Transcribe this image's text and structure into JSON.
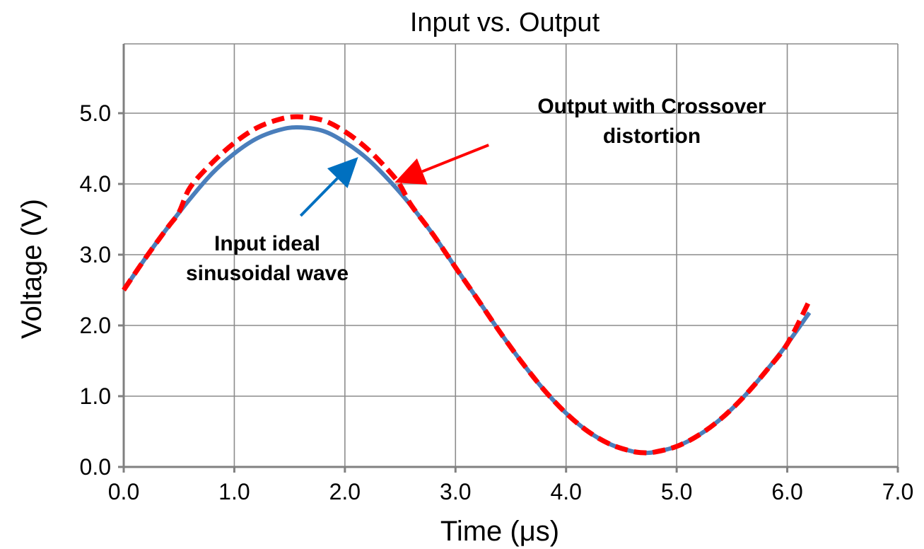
{
  "chart_data": {
    "type": "line",
    "title": "Input vs. Output",
    "xlabel": "Time (μs)",
    "ylabel": "Voltage (V)",
    "xlim": [
      0,
      7
    ],
    "ylim": [
      0,
      5
    ],
    "x_ticks": [
      "0.0",
      "1.0",
      "2.0",
      "3.0",
      "4.0",
      "5.0",
      "6.0",
      "7.0"
    ],
    "y_ticks": [
      "0.0",
      "1.0",
      "2.0",
      "3.0",
      "4.0",
      "5.0"
    ],
    "grid": true,
    "legend": "none",
    "series": [
      {
        "name": "Input ideal sinusoidal wave",
        "color": "#4a7ebb",
        "style": "solid",
        "x": [
          0.0,
          0.2,
          0.4,
          0.6,
          0.8,
          1.0,
          1.2,
          1.4,
          1.571,
          1.8,
          2.0,
          2.2,
          2.4,
          2.6,
          2.8,
          3.0,
          3.2,
          3.4,
          3.6,
          3.8,
          4.0,
          4.2,
          4.4,
          4.6,
          4.712,
          4.8,
          5.0,
          5.2,
          5.4,
          5.6,
          5.8,
          6.0,
          6.2
        ],
        "values": [
          2.5,
          2.96,
          3.39,
          3.79,
          4.15,
          4.43,
          4.64,
          4.76,
          4.8,
          4.75,
          4.59,
          4.36,
          4.05,
          3.69,
          3.28,
          2.82,
          2.37,
          1.91,
          1.48,
          1.09,
          0.76,
          0.5,
          0.32,
          0.22,
          0.2,
          0.21,
          0.29,
          0.45,
          0.68,
          0.98,
          1.34,
          1.74,
          2.18
        ]
      },
      {
        "name": "Output with Crossover distortion",
        "color": "#ff0000",
        "style": "dashed",
        "x": [
          0.0,
          0.2,
          0.4,
          0.5,
          0.6,
          0.8,
          1.0,
          1.2,
          1.4,
          1.571,
          1.8,
          2.0,
          2.2,
          2.4,
          2.5,
          2.6,
          2.8,
          3.0,
          3.2,
          3.4,
          3.6,
          3.8,
          4.0,
          4.2,
          4.4,
          4.6,
          4.712,
          4.8,
          5.0,
          5.2,
          5.4,
          5.6,
          5.8,
          6.0,
          6.2
        ],
        "values": [
          2.5,
          2.96,
          3.39,
          3.6,
          3.95,
          4.3,
          4.58,
          4.79,
          4.91,
          4.95,
          4.9,
          4.74,
          4.5,
          4.18,
          3.98,
          3.7,
          3.28,
          2.82,
          2.37,
          1.91,
          1.48,
          1.09,
          0.76,
          0.5,
          0.32,
          0.22,
          0.2,
          0.21,
          0.29,
          0.45,
          0.68,
          0.98,
          1.34,
          1.74,
          2.35
        ]
      }
    ],
    "annotations": [
      {
        "lines": [
          "Output with Crossover",
          "distortion"
        ],
        "color": "#ff0000",
        "arrow_from": [
          3.3,
          4.55
        ],
        "arrow_to": [
          2.45,
          4.02
        ]
      },
      {
        "lines": [
          "Input ideal",
          "sinusoidal wave"
        ],
        "color": "#0070c0",
        "arrow_from": [
          1.6,
          3.55
        ],
        "arrow_to": [
          2.12,
          4.38
        ]
      }
    ]
  }
}
